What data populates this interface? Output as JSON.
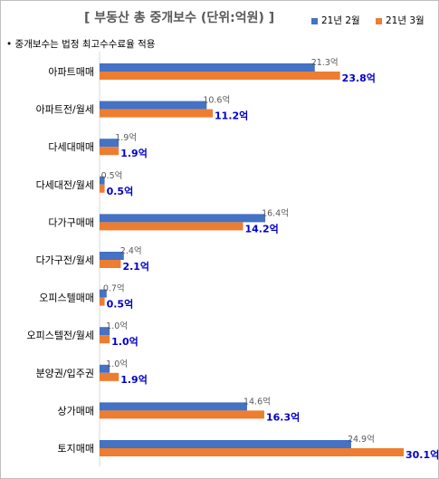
{
  "header": {
    "title": "[ 부동산 총 중개보수 (단위:억원) ]",
    "note": "• 중개보수는 법정 최고수수료율 적용"
  },
  "colors": {
    "feb": "#4472C4",
    "mar": "#ED7D31",
    "feb_label": "#595959",
    "mar_label": "#0000CC"
  },
  "chart_data": {
    "type": "bar",
    "orientation": "horizontal",
    "categories": [
      "아파트매매",
      "아파트전/월세",
      "다세대매매",
      "다세대전/월세",
      "다가구매매",
      "다가구전/월세",
      "오피스텔매매",
      "오피스텔전/월세",
      "분양권/입주권",
      "상가매매",
      "토지매매"
    ],
    "series": [
      {
        "name": "21년 2월",
        "values": [
          21.3,
          10.6,
          1.9,
          0.5,
          16.4,
          2.4,
          0.7,
          1.0,
          1.0,
          14.6,
          24.9
        ],
        "labels": [
          "21.3억",
          "10.6억",
          "1.9억",
          "0.5억",
          "16.4억",
          "2.4억",
          "0.7억",
          "1.0억",
          "1.0억",
          "14.6억",
          "24.9억"
        ]
      },
      {
        "name": "21년 3월",
        "values": [
          23.8,
          11.2,
          1.9,
          0.5,
          14.2,
          2.1,
          0.5,
          1.0,
          1.9,
          16.3,
          30.1
        ],
        "labels": [
          "23.8억",
          "11.2억",
          "1.9억",
          "0.5억",
          "14.2억",
          "2.1억",
          "0.5억",
          "1.0억",
          "1.9억",
          "16.3억",
          "30.1억"
        ]
      }
    ],
    "unit": "억원",
    "legend_position": "top-right",
    "xlim": [
      0,
      31
    ]
  }
}
